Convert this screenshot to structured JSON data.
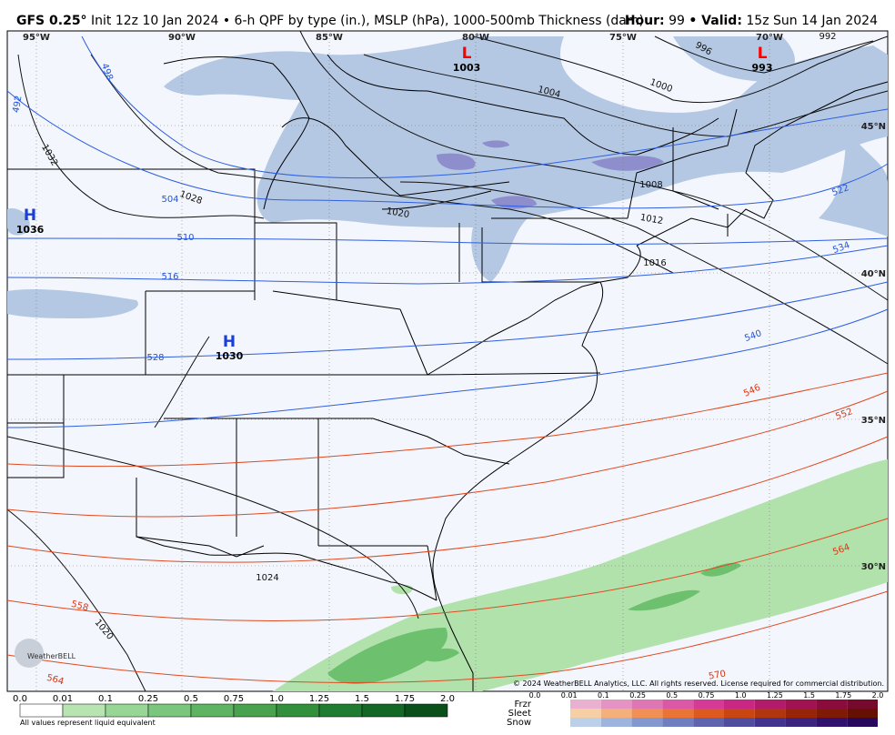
{
  "header": {
    "model": "GFS 0.25°",
    "subtitle": "Init 12z 10 Jan 2024 • 6-h QPF by type (in.), MSLP (hPa), 1000-500mb Thickness (dam)",
    "hour_label": "Hour:",
    "hour": "99",
    "valid_label": "• Valid:",
    "valid": "15z Sun 14 Jan 2024"
  },
  "longitudes": [
    "95°W",
    "90°W",
    "85°W",
    "80°W",
    "75°W",
    "70°W"
  ],
  "latitudes": [
    "45°N",
    "40°N",
    "35°N",
    "30°N"
  ],
  "pressure_centers": [
    {
      "symbol": "L",
      "value": "1003"
    },
    {
      "symbol": "L",
      "value": "993"
    },
    {
      "symbol": "H",
      "value": "1036"
    },
    {
      "symbol": "H",
      "value": "1030"
    }
  ],
  "isobar_labels": [
    "1032",
    "1028",
    "1020",
    "1004",
    "1000",
    "996",
    "992",
    "1008",
    "1012",
    "1016",
    "1024",
    "1020"
  ],
  "thickness_labels_cold": [
    "498",
    "492",
    "504",
    "510",
    "516",
    "528",
    "522",
    "534",
    "540"
  ],
  "thickness_labels_warm": [
    "546",
    "552",
    "564",
    "558",
    "564",
    "570"
  ],
  "qpf_legend": {
    "ticks": [
      "0.0",
      "0.01",
      "0.1",
      "0.25",
      "0.5",
      "0.75",
      "1.0",
      "1.25",
      "1.5",
      "1.75",
      "2.0"
    ],
    "note": "All values represent liquid equivalent"
  },
  "ptype_legend": {
    "types": [
      "Frzr",
      "Sleet",
      "Snow"
    ],
    "ticks": [
      "0.0",
      "0.01",
      "0.1",
      "0.25",
      "0.5",
      "0.75",
      "1.0",
      "1.25",
      "1.5",
      "1.75",
      "2.0"
    ]
  },
  "copyright": "© 2024 WeatherBELL Analytics, LLC. All rights reserved. License required for commercial distribution.",
  "logo": "WeatherBELL"
}
